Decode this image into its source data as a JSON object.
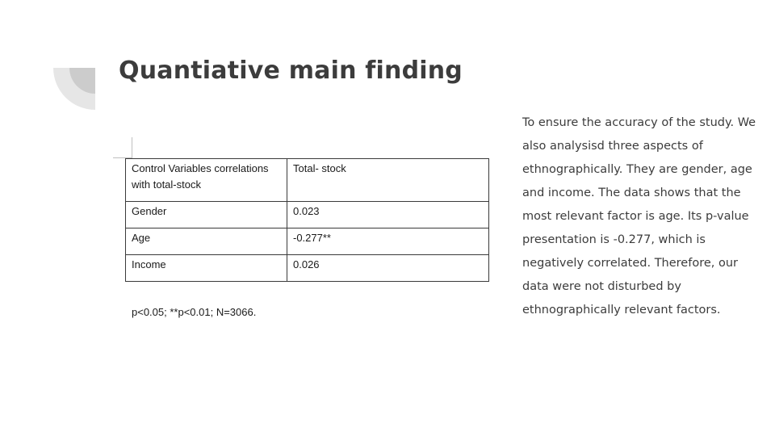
{
  "slide": {
    "title": "Quantiative main finding",
    "body": "To ensure the accuracy of the study. We also analysisd three aspects of ethnographically. They are gender, age and income. The data shows that the most relevant factor is age. Its p-value presentation is -0.277, which is negatively correlated. Therefore, our data were not disturbed by ethnographically relevant factors."
  },
  "table": {
    "header": [
      "Control Variables correlations with total-stock",
      "Total- stock"
    ],
    "rows": [
      [
        "Gender",
        "0.023"
      ],
      [
        "Age",
        "-0.277**"
      ],
      [
        "Income",
        "0.026"
      ]
    ],
    "footnote": "p<0.05; **p<0.01; N=3066."
  },
  "colors": {
    "title": "#3c3c3c",
    "body": "#3c3c3c",
    "deco_outer": "#e6e6e6",
    "deco_inner": "#cccccc"
  }
}
